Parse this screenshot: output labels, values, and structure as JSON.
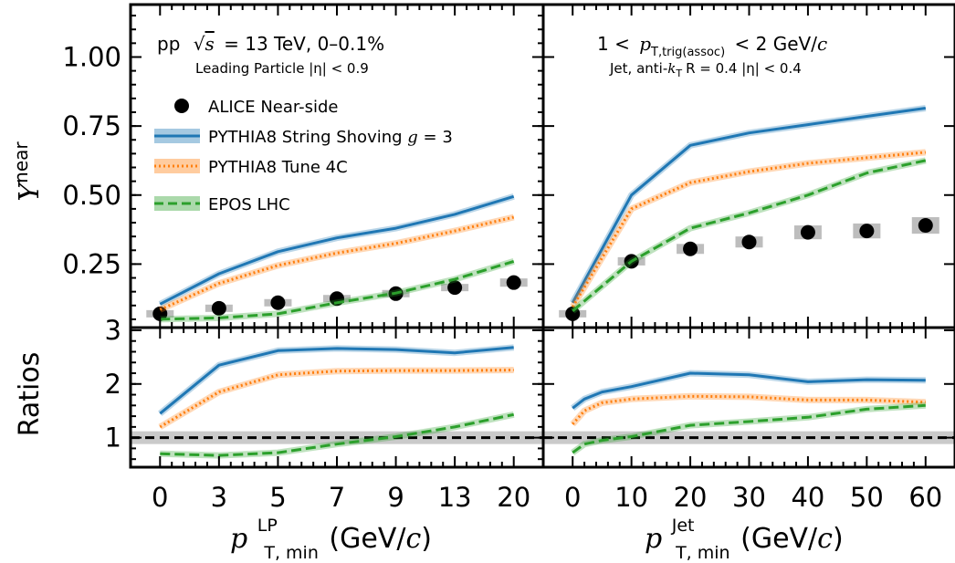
{
  "chart_data": [
    {
      "type": "line",
      "panel": "top-left",
      "x_axis": "categorical",
      "categories": [
        "0",
        "3",
        "5",
        "7",
        "9",
        "13",
        "20"
      ],
      "ylabel": "Y^near",
      "ylim": [
        0.02,
        1.19
      ],
      "yticks": [
        "0.25",
        "0.50",
        "0.75",
        "1.00"
      ],
      "annotations": {
        "line1_pre": "pp",
        "line1_mid": "= 13 TeV, 0–0.1%",
        "sqrt_s": "s",
        "line2": "Leading Particle |η| < 0.9"
      },
      "legend_position": "upper-left",
      "series": [
        {
          "name": "ALICE Near-side",
          "style": "points",
          "color": "#000000",
          "values": [
            0.07,
            0.09,
            0.11,
            0.125,
            0.143,
            0.165,
            0.183
          ],
          "syst": [
            0.006,
            0.008,
            0.01,
            0.012,
            0.012,
            0.013,
            0.015
          ]
        },
        {
          "name": "PYTHIA8 String Shoving g = 3",
          "style": "solid",
          "color": "#1f77b4",
          "values": [
            0.105,
            0.215,
            0.295,
            0.345,
            0.38,
            0.43,
            0.495
          ]
        },
        {
          "name": "PYTHIA8 Tune 4C",
          "style": "dotted",
          "color": "#ff7f0e",
          "values": [
            0.085,
            0.18,
            0.245,
            0.29,
            0.325,
            0.37,
            0.42
          ]
        },
        {
          "name": "EPOS LHC",
          "style": "dashed",
          "color": "#2ca02c",
          "values": [
            0.05,
            0.055,
            0.07,
            0.11,
            0.145,
            0.195,
            0.26
          ]
        }
      ]
    },
    {
      "type": "line",
      "panel": "top-right",
      "x_axis": "numeric",
      "xlim": [
        -5,
        65
      ],
      "x": [
        0,
        10,
        20,
        30,
        40,
        50,
        60
      ],
      "ylim": [
        0.02,
        1.19
      ],
      "annotations": {
        "line1_pre": "1 <",
        "p": "p",
        "sub": "T,trig(assoc)",
        "line1_post": "< 2 GeV/",
        "c": "c",
        "line2_pre": "Jet, anti-",
        "k": "k",
        "ksub": "T",
        "line2_post": "R = 0.4 |η| < 0.4"
      },
      "series": [
        {
          "name": "ALICE Near-side",
          "style": "points",
          "color": "#000000",
          "values": [
            0.07,
            0.26,
            0.305,
            0.33,
            0.365,
            0.37,
            0.39
          ],
          "syst": [
            0.006,
            0.015,
            0.018,
            0.02,
            0.025,
            0.027,
            0.03
          ]
        },
        {
          "name": "PYTHIA8 String Shoving g = 3",
          "style": "solid",
          "color": "#1f77b4",
          "values": [
            0.11,
            0.5,
            0.68,
            0.725,
            0.755,
            0.785,
            0.815
          ]
        },
        {
          "name": "PYTHIA8 Tune 4C",
          "style": "dotted",
          "color": "#ff7f0e",
          "values": [
            0.095,
            0.45,
            0.545,
            0.585,
            0.615,
            0.635,
            0.655
          ]
        },
        {
          "name": "EPOS LHC",
          "style": "dashed",
          "color": "#2ca02c",
          "values": [
            0.08,
            0.26,
            0.38,
            0.435,
            0.5,
            0.58,
            0.625
          ]
        }
      ]
    },
    {
      "type": "line",
      "panel": "bottom-left",
      "x_axis": "categorical",
      "categories": [
        "0",
        "3",
        "5",
        "7",
        "9",
        "13",
        "20"
      ],
      "xlabel": "p_T,min^LP (GeV/c)",
      "ylabel": "Ratios",
      "ylim": [
        0.45,
        3.05
      ],
      "yticks": [
        "1",
        "2",
        "3"
      ],
      "reference_line": 1,
      "series": [
        {
          "name": "PYTHIA8 String Shoving g = 3",
          "style": "solid",
          "color": "#1f77b4",
          "values": [
            1.45,
            2.35,
            2.62,
            2.66,
            2.64,
            2.58,
            2.68
          ]
        },
        {
          "name": "PYTHIA8 Tune 4C",
          "style": "dotted",
          "color": "#ff7f0e",
          "values": [
            1.2,
            1.85,
            2.17,
            2.24,
            2.25,
            2.25,
            2.26
          ]
        },
        {
          "name": "EPOS LHC",
          "style": "dashed",
          "color": "#2ca02c",
          "values": [
            0.7,
            0.67,
            0.72,
            0.88,
            1.02,
            1.2,
            1.43
          ]
        }
      ]
    },
    {
      "type": "line",
      "panel": "bottom-right",
      "x_axis": "numeric",
      "xlim": [
        -5,
        65
      ],
      "x": [
        0,
        10,
        20,
        30,
        40,
        50,
        60
      ],
      "xticks": [
        "0",
        "10",
        "20",
        "30",
        "40",
        "50",
        "60"
      ],
      "xlabel": "p_T,min^Jet (GeV/c)",
      "ylim": [
        0.45,
        3.05
      ],
      "reference_line": 1,
      "series": [
        {
          "name": "PYTHIA8 String Shoving g = 3",
          "style": "solid",
          "color": "#1f77b4",
          "x": [
            0,
            2,
            5,
            10,
            20,
            30,
            40,
            50,
            60
          ],
          "values": [
            1.55,
            1.72,
            1.85,
            1.95,
            2.2,
            2.17,
            2.04,
            2.08,
            2.07
          ]
        },
        {
          "name": "PYTHIA8 Tune 4C",
          "style": "dotted",
          "color": "#ff7f0e",
          "x": [
            0,
            2,
            5,
            10,
            20,
            30,
            40,
            50,
            60
          ],
          "values": [
            1.25,
            1.5,
            1.65,
            1.72,
            1.77,
            1.76,
            1.7,
            1.7,
            1.66
          ]
        },
        {
          "name": "EPOS LHC",
          "style": "dashed",
          "color": "#2ca02c",
          "x": [
            0,
            2,
            5,
            10,
            20,
            30,
            40,
            50,
            60
          ],
          "values": [
            0.72,
            0.88,
            0.95,
            1.02,
            1.23,
            1.3,
            1.38,
            1.53,
            1.6
          ]
        }
      ]
    }
  ],
  "axis_labels": {
    "y_top": {
      "base": "Y",
      "sup": "near"
    },
    "y_bottom": "Ratios",
    "x_left": {
      "p": "p",
      "sup": "LP",
      "sub": "T, min",
      "unit_pre": " (GeV/",
      "c": "c",
      "unit_post": ")"
    },
    "x_right": {
      "p": "p",
      "sup": "Jet",
      "sub": "T, min",
      "unit_pre": " (GeV/",
      "c": "c",
      "unit_post": ")"
    }
  },
  "legend": [
    {
      "name": "ALICE Near-side",
      "style": "points",
      "color": "#000000"
    },
    {
      "name_pre": "PYTHIA8 String Shoving ",
      "g": "g",
      "name_post": " = 3",
      "style": "solid",
      "color": "#1f77b4"
    },
    {
      "name": "PYTHIA8 Tune 4C",
      "style": "dotted",
      "color": "#ff7f0e"
    },
    {
      "name": "EPOS LHC",
      "style": "dashed",
      "color": "#2ca02c"
    }
  ]
}
